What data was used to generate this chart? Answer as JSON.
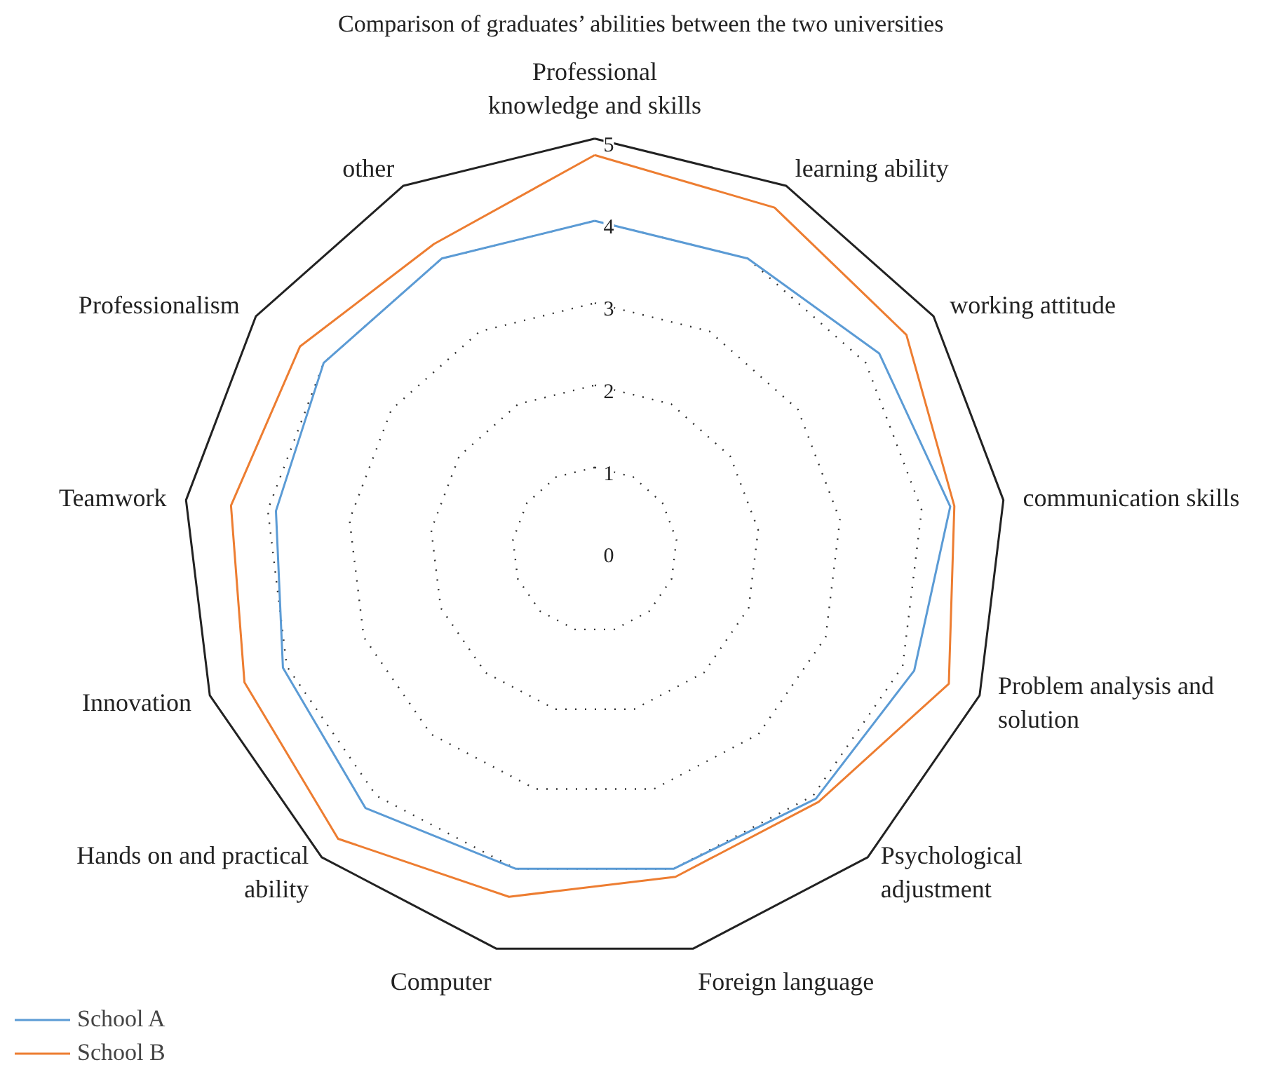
{
  "chart_data": {
    "type": "radar",
    "title": "Comparison of graduates’ abilities between the two universities",
    "categories": [
      "Professional\nknowledge and skills",
      "learning ability",
      "working attitude",
      "communication skills",
      "Problem analysis and\nsolution",
      "Psychological\nadjustment",
      "Foreign language",
      "Computer",
      "Hands on and practical\nability",
      "Innovation",
      "Teamwork",
      "Professionalism",
      "other"
    ],
    "series": [
      {
        "name": "School A",
        "color": "#5b9bd5",
        "values": [
          4.0,
          4.0,
          4.2,
          4.35,
          4.15,
          4.05,
          4.0,
          4.0,
          4.2,
          4.05,
          3.9,
          4.0,
          4.0
        ]
      },
      {
        "name": "School B",
        "color": "#ed7d31",
        "values": [
          4.8,
          4.7,
          4.6,
          4.4,
          4.6,
          4.1,
          4.1,
          4.35,
          4.7,
          4.55,
          4.45,
          4.35,
          4.2
        ]
      }
    ],
    "ylim": [
      0,
      5
    ],
    "yticks": [
      0,
      1,
      2,
      3,
      4,
      5
    ],
    "grid": true,
    "legend": "bottom left"
  }
}
